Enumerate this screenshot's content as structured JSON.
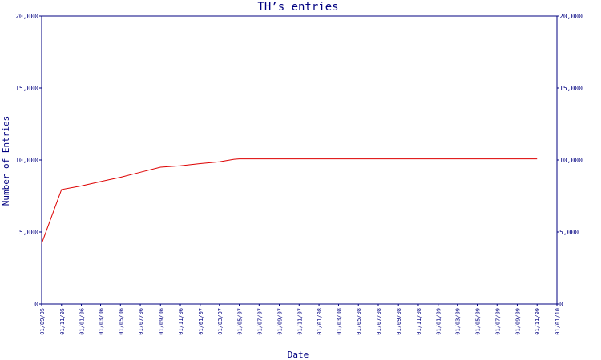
{
  "chart_data": {
    "type": "line",
    "title": "TH’s entries",
    "xlabel": "Date",
    "ylabel": "Number of Entries",
    "ylim": [
      0,
      20000
    ],
    "ytick_values": [
      0,
      5000,
      10000,
      15000,
      20000
    ],
    "ytick_labels": [
      "0",
      "5,000",
      "10,000",
      "15,000",
      "20,000"
    ],
    "xtick_labels": [
      "01/09/05",
      "01/11/05",
      "01/01/06",
      "01/03/06",
      "01/05/06",
      "01/07/06",
      "01/09/06",
      "01/11/06",
      "01/01/07",
      "01/03/07",
      "01/05/07",
      "01/07/07",
      "01/09/07",
      "01/11/07",
      "01/01/08",
      "01/03/08",
      "01/05/08",
      "01/07/08",
      "01/09/08",
      "01/11/08",
      "01/01/09",
      "01/03/09",
      "01/05/09",
      "01/07/09",
      "01/09/09",
      "01/11/09",
      "01/01/10"
    ],
    "grid": false,
    "colors": {
      "axis": "#000080",
      "text": "#000080",
      "line": "#dd0000",
      "background": "#ffffff"
    },
    "series": [
      {
        "x": [
          "2005-09-01",
          "2005-11-01",
          "2006-01-01",
          "2006-03-01",
          "2006-05-01",
          "2006-07-01",
          "2006-09-01",
          "2006-11-01",
          "2007-01-01",
          "2007-03-01",
          "2007-04-15",
          "2007-05-01",
          "2007-07-01",
          "2007-09-01",
          "2007-11-01",
          "2008-01-01",
          "2008-03-01",
          "2008-05-01",
          "2008-07-01",
          "2008-09-01",
          "2008-11-01",
          "2009-01-01",
          "2009-03-01",
          "2009-05-01",
          "2009-07-01",
          "2009-09-01",
          "2009-11-01"
        ],
        "values": [
          4200,
          7950,
          8200,
          8500,
          8800,
          9150,
          9500,
          9600,
          9750,
          9870,
          10050,
          10080,
          10080,
          10080,
          10080,
          10080,
          10080,
          10080,
          10080,
          10080,
          10080,
          10080,
          10080,
          10080,
          10080,
          10080,
          10080
        ]
      }
    ]
  }
}
